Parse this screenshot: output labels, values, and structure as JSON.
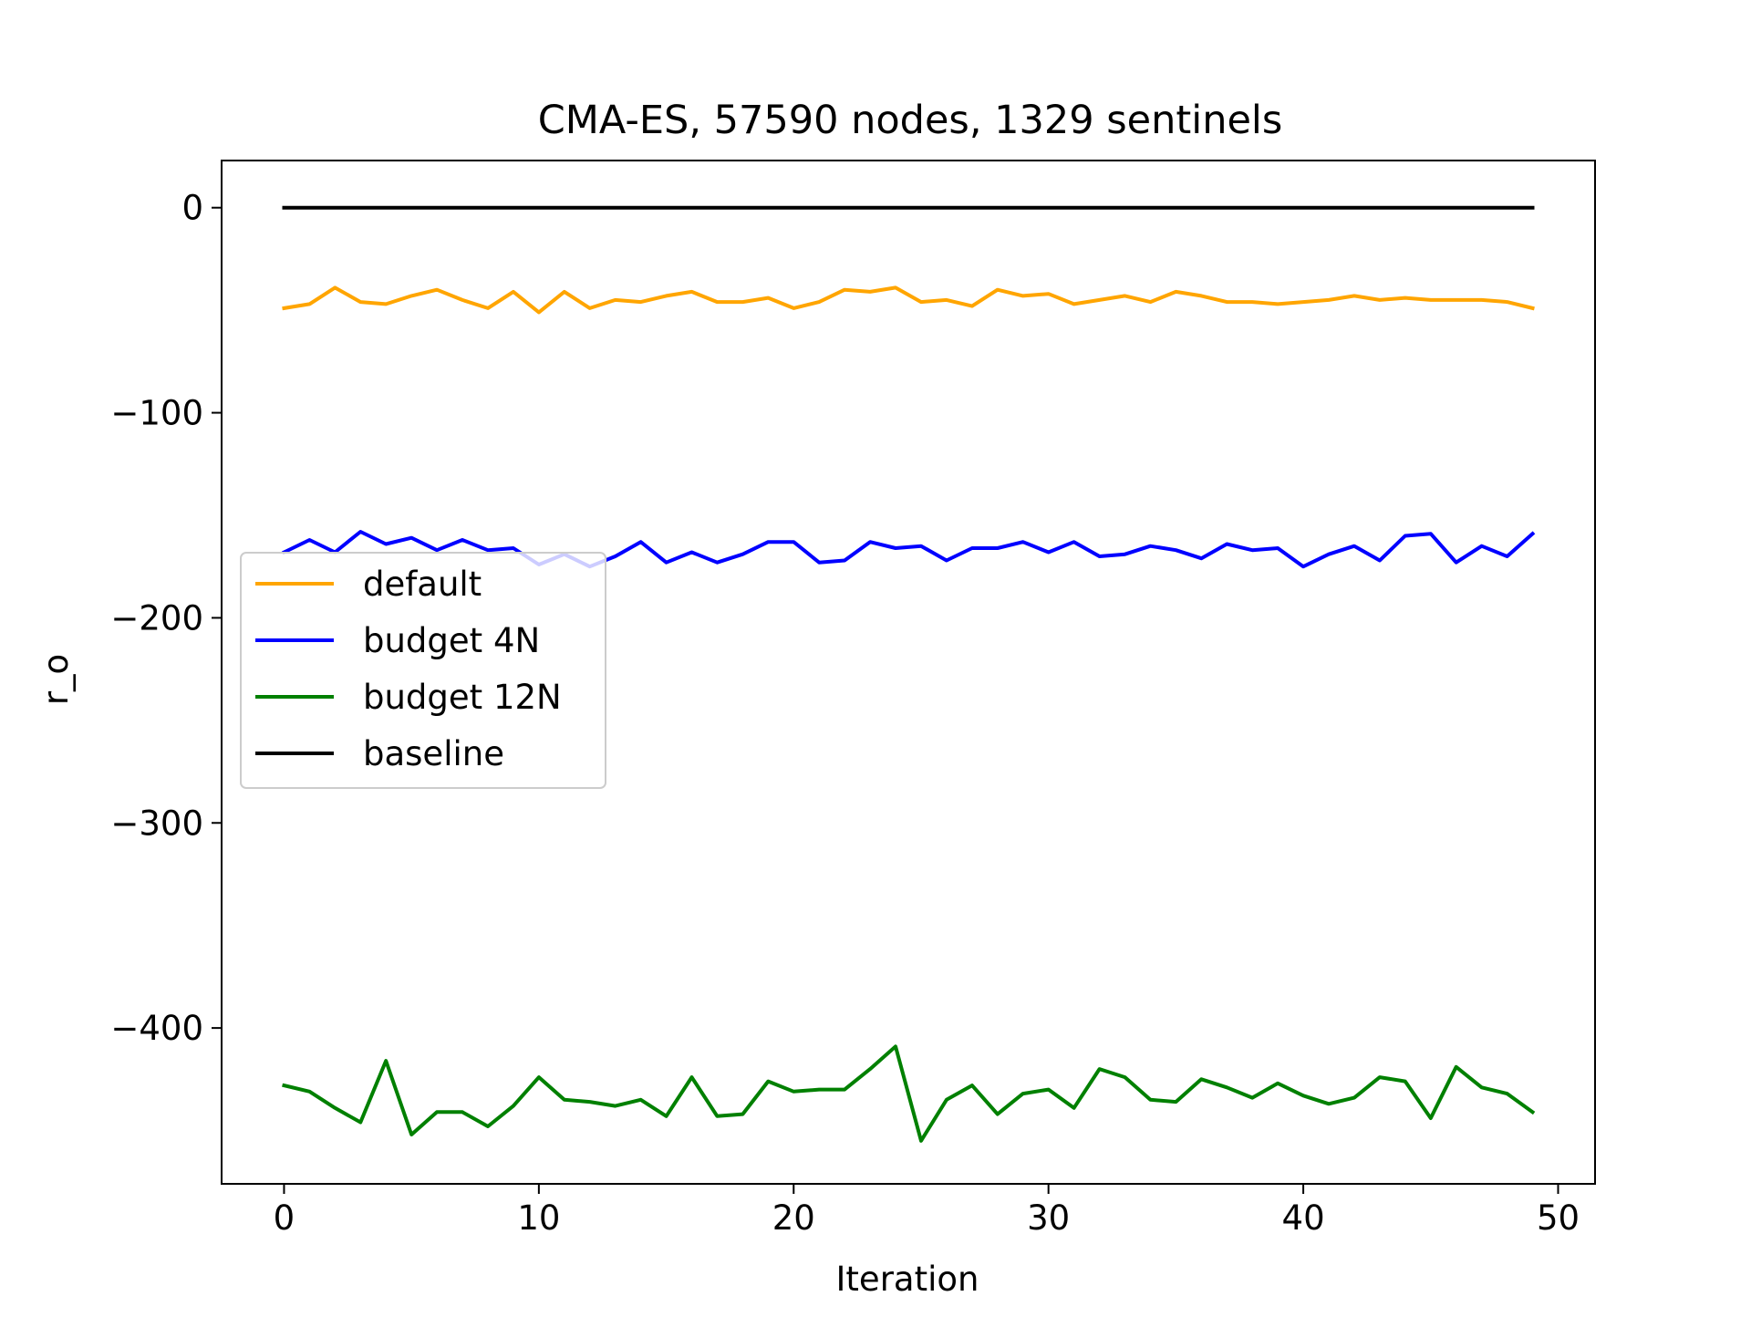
{
  "chart_data": {
    "type": "line",
    "title": "CMA-ES, 57590 nodes, 1329 sentinels",
    "xlabel": "Iteration",
    "ylabel": "r_o",
    "xlim": [
      -2.45,
      51.45
    ],
    "ylim": [
      -476,
      23
    ],
    "xticks": [
      0,
      10,
      20,
      30,
      40,
      50
    ],
    "xtick_labels": [
      "0",
      "10",
      "20",
      "30",
      "40",
      "50"
    ],
    "yticks": [
      0,
      -100,
      -200,
      -300,
      -400
    ],
    "ytick_labels": [
      "0",
      "−100",
      "−200",
      "−300",
      "−400"
    ],
    "grid": false,
    "legend_position": "center-left",
    "x": [
      0,
      1,
      2,
      3,
      4,
      5,
      6,
      7,
      8,
      9,
      10,
      11,
      12,
      13,
      14,
      15,
      16,
      17,
      18,
      19,
      20,
      21,
      22,
      23,
      24,
      25,
      26,
      27,
      28,
      29,
      30,
      31,
      32,
      33,
      34,
      35,
      36,
      37,
      38,
      39,
      40,
      41,
      42,
      43,
      44,
      45,
      46,
      47,
      48,
      49
    ],
    "series": [
      {
        "name": "default",
        "color": "#ffa500",
        "values": [
          -49,
          -47,
          -39,
          -46,
          -47,
          -43,
          -40,
          -45,
          -49,
          -41,
          -51,
          -41,
          -49,
          -45,
          -46,
          -43,
          -41,
          -46,
          -46,
          -44,
          -49,
          -46,
          -40,
          -41,
          -39,
          -46,
          -45,
          -48,
          -40,
          -43,
          -42,
          -47,
          -45,
          -43,
          -46,
          -41,
          -43,
          -46,
          -46,
          -47,
          -46,
          -45,
          -43,
          -45,
          -44,
          -45,
          -45,
          -45,
          -46,
          -49
        ]
      },
      {
        "name": "budget 4N",
        "color": "#0000ff",
        "values": [
          -168,
          -162,
          -168,
          -158,
          -164,
          -161,
          -167,
          -162,
          -167,
          -166,
          -174,
          -169,
          -175,
          -170,
          -163,
          -173,
          -168,
          -173,
          -169,
          -163,
          -163,
          -173,
          -172,
          -163,
          -166,
          -165,
          -172,
          -166,
          -166,
          -163,
          -168,
          -163,
          -170,
          -169,
          -165,
          -167,
          -171,
          -164,
          -167,
          -166,
          -175,
          -169,
          -165,
          -172,
          -160,
          -159,
          -173,
          -165,
          -170,
          -159
        ]
      },
      {
        "name": "budget 12N",
        "color": "#008000",
        "values": [
          -428,
          -431,
          -439,
          -446,
          -416,
          -452,
          -441,
          -441,
          -448,
          -438,
          -424,
          -435,
          -436,
          -438,
          -435,
          -443,
          -424,
          -443,
          -442,
          -426,
          -431,
          -430,
          -430,
          -420,
          -409,
          -455,
          -435,
          -428,
          -442,
          -432,
          -430,
          -439,
          -420,
          -424,
          -435,
          -436,
          -425,
          -429,
          -434,
          -427,
          -433,
          -437,
          -434,
          -424,
          -426,
          -444,
          -419,
          -429,
          -432,
          -441
        ]
      },
      {
        "name": "baseline",
        "color": "#000000",
        "values": [
          0,
          0,
          0,
          0,
          0,
          0,
          0,
          0,
          0,
          0,
          0,
          0,
          0,
          0,
          0,
          0,
          0,
          0,
          0,
          0,
          0,
          0,
          0,
          0,
          0,
          0,
          0,
          0,
          0,
          0,
          0,
          0,
          0,
          0,
          0,
          0,
          0,
          0,
          0,
          0,
          0,
          0,
          0,
          0,
          0,
          0,
          0,
          0,
          0,
          0
        ]
      }
    ],
    "legend_order": [
      "default",
      "budget 4N",
      "budget 12N",
      "baseline"
    ]
  }
}
